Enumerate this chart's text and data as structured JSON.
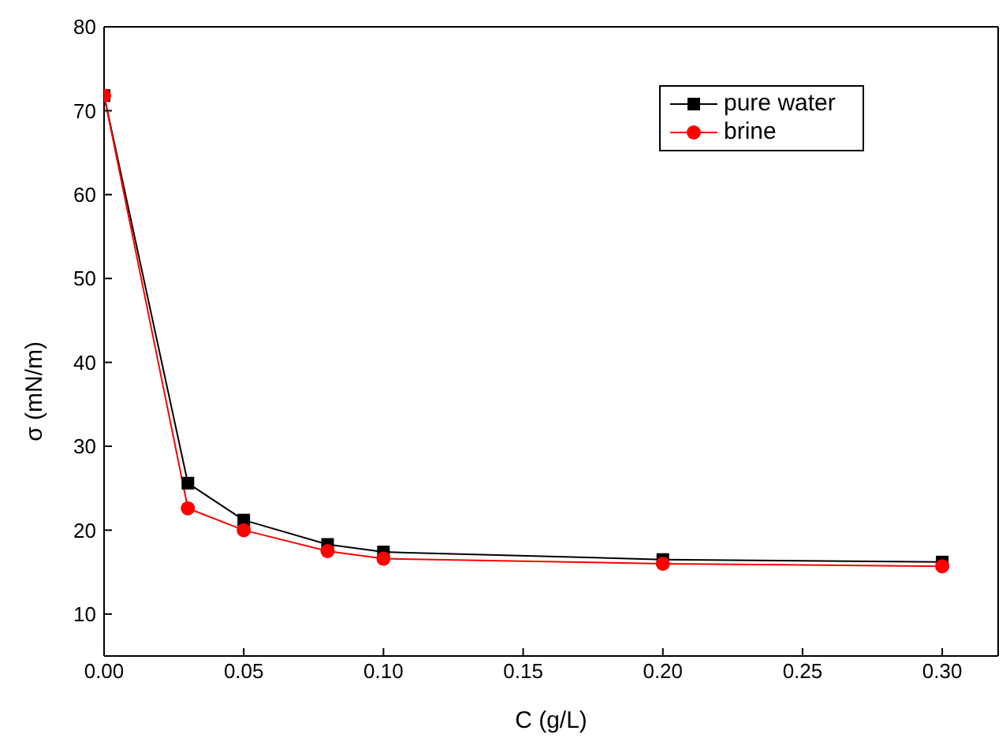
{
  "chart_data": {
    "type": "line",
    "xlabel": "C (g/L)",
    "ylabel": "σ (mN/m)",
    "x": [
      0,
      0.03,
      0.05,
      0.08,
      0.1,
      0.2,
      0.3
    ],
    "xlim": [
      0,
      0.32
    ],
    "xticks": [
      {
        "value": 0,
        "label": "0.00"
      },
      {
        "value": 0.05,
        "label": "0.05"
      },
      {
        "value": 0.1,
        "label": "0.10"
      },
      {
        "value": 0.15,
        "label": "0.15"
      },
      {
        "value": 0.2,
        "label": "0.20"
      },
      {
        "value": 0.25,
        "label": "0.25"
      },
      {
        "value": 0.3,
        "label": "0.30"
      }
    ],
    "ylim": [
      5,
      80
    ],
    "yticks": [
      10,
      20,
      30,
      40,
      50,
      60,
      70,
      80
    ],
    "legend": "top right",
    "series": [
      {
        "name": "pure water",
        "color": "#000000",
        "marker": "square",
        "values": [
          71.8,
          25.6,
          21.2,
          18.3,
          17.4,
          16.5,
          16.2
        ]
      },
      {
        "name": "brine",
        "color": "#ff0000",
        "marker": "circle",
        "values": [
          71.8,
          22.6,
          20.0,
          17.5,
          16.6,
          16.0,
          15.7
        ]
      }
    ]
  }
}
